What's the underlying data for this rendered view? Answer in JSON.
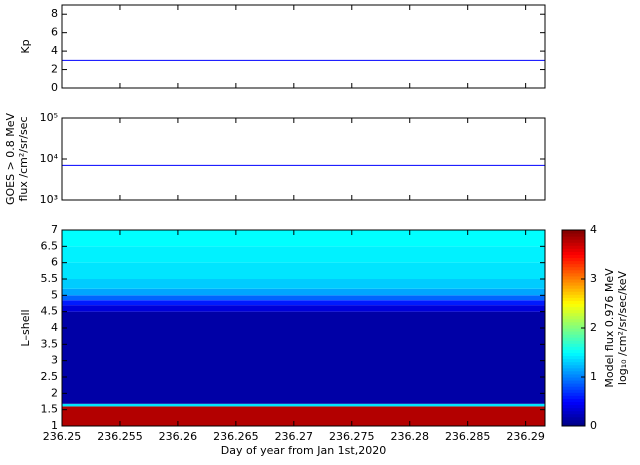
{
  "chart_data": [
    {
      "type": "line",
      "ylabel": "Kp",
      "x": [
        236.25,
        236.29167
      ],
      "series": [
        {
          "color": "#0000ff",
          "values": [
            3,
            3
          ]
        }
      ],
      "ylim": [
        0,
        9
      ],
      "yticks": [
        0,
        2,
        4,
        6,
        8
      ]
    },
    {
      "type": "line",
      "ylabel": [
        "GOES > 0.8 MeV",
        "flux /cm²/sr/sec"
      ],
      "log_scale": true,
      "x": [
        236.25,
        236.29167
      ],
      "series": [
        {
          "color": "#0000ff",
          "values": [
            7000,
            7000
          ]
        }
      ],
      "ylim": [
        1000,
        100000
      ],
      "yticks": [
        {
          "value": 1000,
          "label": "10³"
        },
        {
          "value": 10000,
          "label": "10⁴"
        },
        {
          "value": 100000,
          "label": "10⁵"
        }
      ]
    },
    {
      "type": "heatmap",
      "ylabel": "L–shell",
      "xlabel": "Day of year from Jan 1st,2020",
      "xlim": [
        236.25,
        236.29167
      ],
      "xticks": [
        236.25,
        236.255,
        236.26,
        236.265,
        236.27,
        236.275,
        236.28,
        236.285,
        236.29
      ],
      "ylim": [
        1,
        7
      ],
      "yticks": [
        1,
        1.5,
        2,
        2.5,
        3,
        3.5,
        4,
        4.5,
        5,
        5.5,
        6,
        6.5,
        7
      ],
      "y_bins": [
        1,
        1.6,
        1.68,
        4.5,
        4.7,
        4.85,
        5.0,
        5.2,
        5.5,
        6.0,
        6.5,
        7
      ],
      "values": [
        3.8,
        1.4,
        0.15,
        0.35,
        0.6,
        0.9,
        1.15,
        1.3,
        1.4,
        1.45,
        1.5
      ],
      "colormap": "jet",
      "clim": [
        0,
        4
      ],
      "cticks": [
        0,
        1,
        2,
        3,
        4
      ],
      "colorbar_label": [
        "Model flux 0.976 MeV",
        "log₁₀ /cm²/sr/sec/keV"
      ]
    }
  ]
}
